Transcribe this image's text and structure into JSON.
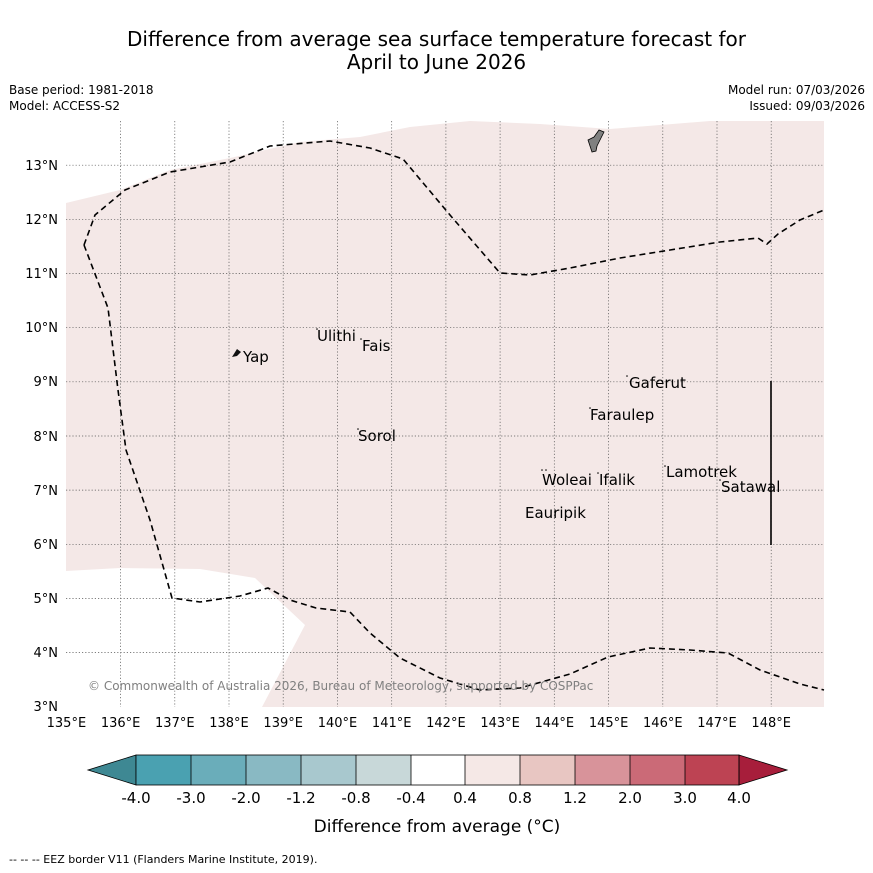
{
  "header": {
    "title_line1": "Difference from average sea surface temperature forecast for",
    "title_line2": "April to June 2026",
    "base_period": "Base period: 1981-2018",
    "model": "Model: ACCESS-S2",
    "model_run": "Model run: 07/03/2026",
    "issued": "Issued: 09/03/2026"
  },
  "map": {
    "lon_labels": [
      "135°E",
      "136°E",
      "137°E",
      "138°E",
      "139°E",
      "140°E",
      "141°E",
      "142°E",
      "143°E",
      "144°E",
      "145°E",
      "146°E",
      "147°E",
      "148°E"
    ],
    "lat_labels": [
      "3°N",
      "4°N",
      "5°N",
      "6°N",
      "7°N",
      "8°N",
      "9°N",
      "10°N",
      "11°N",
      "12°N",
      "13°N"
    ],
    "places": [
      "Ulithi",
      "Fais",
      "Yap",
      "Gaferut",
      "Faraulep",
      "Sorol",
      "Lamotrek",
      "Woleai",
      "Ifalik",
      "Satawal",
      "Eauripik"
    ],
    "copyright": "© Commonwealth of Australia 2026, Bureau of Meteorology, supported by COSPPac",
    "ocean_color": "#f4e8e7",
    "land_color": "#808080"
  },
  "colorbar": {
    "colors": [
      "#3e8893",
      "#4aa1b1",
      "#6aadba",
      "#89b9c3",
      "#a8c8ce",
      "#c8d8d9",
      "#ffffff",
      "#f5e8e6",
      "#e8c6c2",
      "#d8939a",
      "#cb6a77",
      "#bd4353",
      "#a71e3b"
    ],
    "tick_labels": [
      "-4.0",
      "-3.0",
      "-2.0",
      "-1.2",
      "-0.8",
      "-0.4",
      "0.4",
      "0.8",
      "1.2",
      "2.0",
      "3.0",
      "4.0"
    ],
    "label": "Difference from average (°C)"
  },
  "footer": {
    "eez_note": "--  --  -- EEZ border V11 (Flanders Marine Institute, 2019)."
  }
}
